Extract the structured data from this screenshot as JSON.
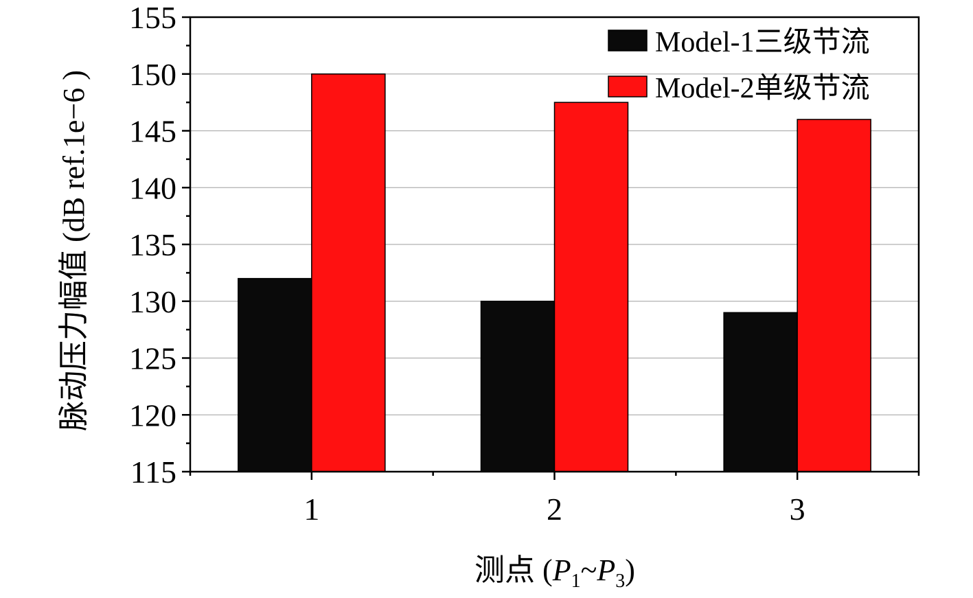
{
  "chart_data": {
    "type": "bar",
    "categories": [
      "1",
      "2",
      "3"
    ],
    "series": [
      {
        "name": "Model-1三级节流",
        "values": [
          132,
          130,
          129
        ],
        "color": "#0a0a0a"
      },
      {
        "name": "Model-2单级节流",
        "values": [
          150,
          147.5,
          146
        ],
        "color": "#ff1111"
      }
    ],
    "xlabel": {
      "prefix": "测点 (",
      "p_first": "P",
      "sub_first": "1",
      "tilde": "~",
      "p_last": "P",
      "sub_last": "3",
      "suffix": ")"
    },
    "ylabel": "脉动压力幅值 (dB ref.1e−6 )",
    "ylim": [
      115,
      155
    ],
    "yticks": [
      "115",
      "120",
      "125",
      "130",
      "135",
      "140",
      "145",
      "150",
      "155"
    ],
    "grid": true,
    "legend_position": "top-right"
  }
}
